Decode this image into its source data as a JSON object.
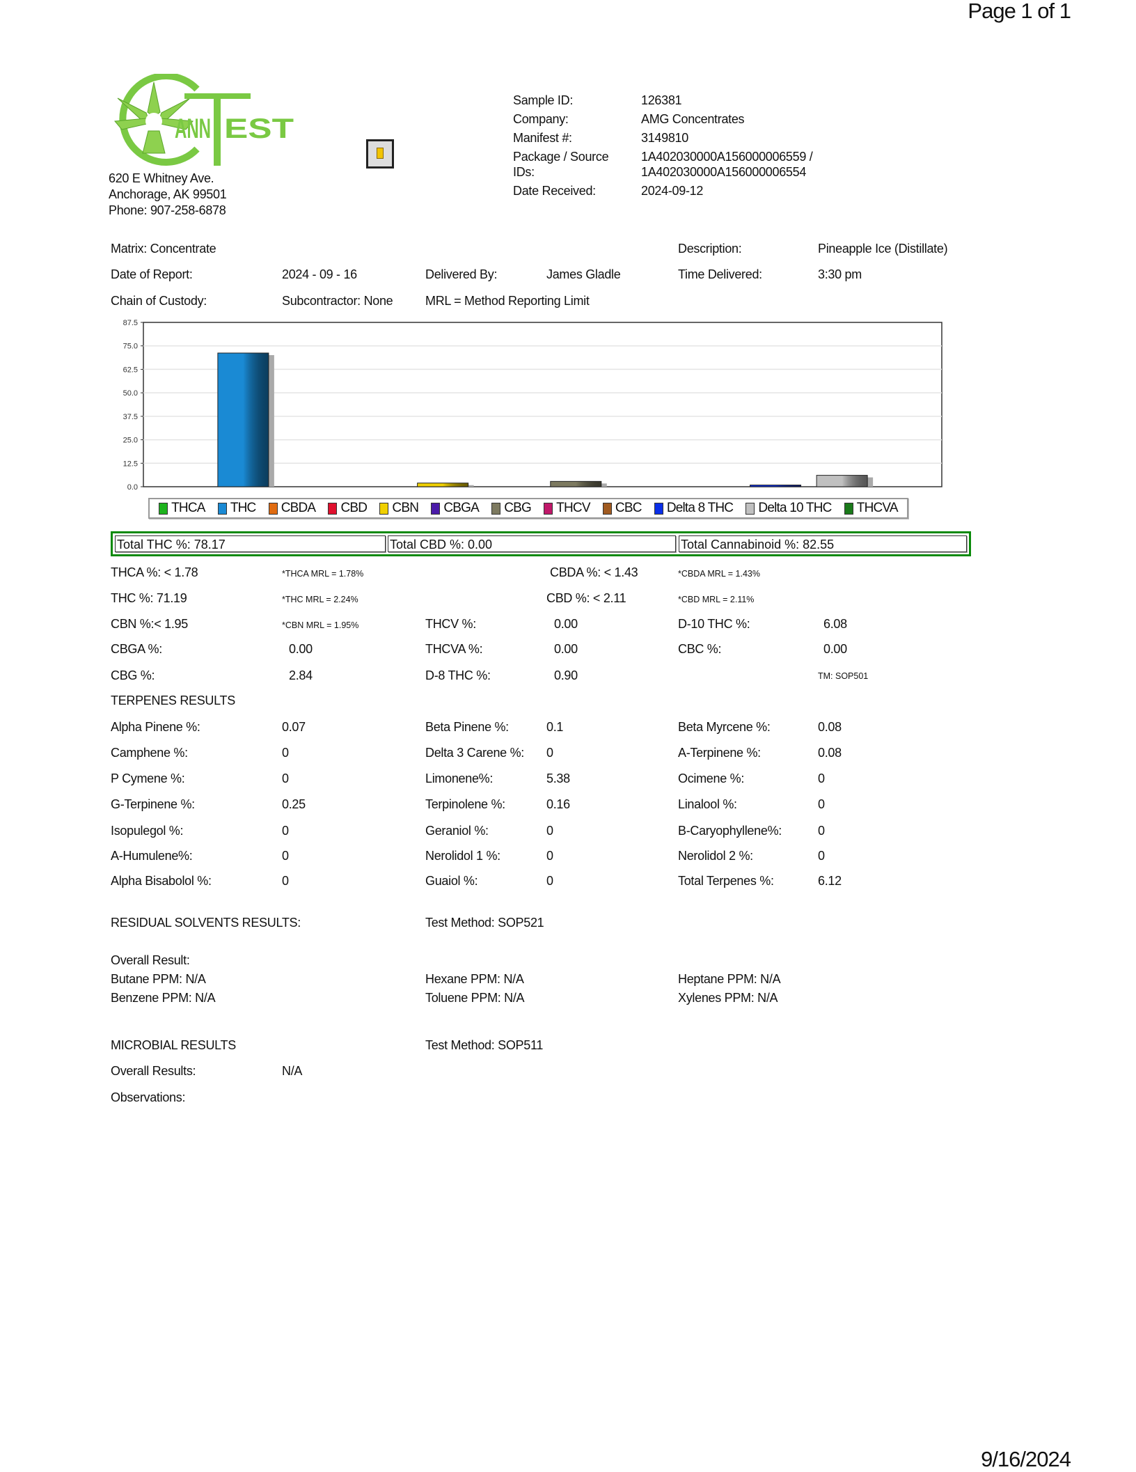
{
  "page_number": "Page 1 of 1",
  "footer_date": "9/16/2024",
  "lab": {
    "logo_text": "CANNTEST",
    "address1": "620 E Whitney  Ave.",
    "address2": "Anchorage, AK 99501",
    "phone": "Phone: 907-258-6878",
    "icon": "small-image-icon"
  },
  "sample": {
    "id_label": "Sample ID:",
    "id": "126381",
    "company_label": "Company:",
    "company": "AMG  Concentrates",
    "manifest_label": "Manifest #:",
    "manifest": "3149810",
    "package_label1": "Package / Source",
    "package_label2": "IDs:",
    "package1": "1A402030000A156000006559 /",
    "package2": "1A402030000A156000006554",
    "received_label": "Date Received:",
    "received": "2024-09-12"
  },
  "info": {
    "matrix": "Matrix:  Concentrate",
    "description_label": "Description:",
    "description": "Pineapple Ice (Distillate)",
    "report_date_label": "Date of Report:",
    "report_date": "2024 - 09 - 16",
    "delivered_by_label": "Delivered By:",
    "delivered_by": "James Gladle",
    "time_label": "Time Delivered:",
    "time": "3:30 pm",
    "custody_label": "Chain of Custody:",
    "custody": "Subcontractor: None",
    "mrl_note": "MRL = Method Reporting Limit"
  },
  "chart_data": {
    "type": "bar",
    "categories": [
      "THCA",
      "THC",
      "CBDA",
      "CBD",
      "CBN",
      "CBGA",
      "CBG",
      "THCV",
      "CBC",
      "Delta 8 THC",
      "Delta 10 THC",
      "THCVA"
    ],
    "values": [
      0,
      71.19,
      0,
      0,
      1.95,
      0,
      2.84,
      0,
      0,
      0.9,
      6.08,
      0
    ],
    "colors": [
      "#1db31d",
      "#1a8ad4",
      "#e06b10",
      "#e0102e",
      "#f0d000",
      "#4a1aa8",
      "#7d7a60",
      "#c0186a",
      "#a05a20",
      "#0a2ee8",
      "#c0c0c0",
      "#1a7a1a"
    ],
    "yticks": [
      "0.0",
      "12.5",
      "25.0",
      "37.5",
      "50.0",
      "62.5",
      "75.0",
      "87.5"
    ],
    "ylim": [
      0,
      87.5
    ],
    "grid": true,
    "legend": "bottom"
  },
  "totals": {
    "thc": "Total  THC %:  78.17",
    "cbd": "Total  CBD %:  0.00",
    "cannabinoid": "Total  Cannabinoid %:  82.55"
  },
  "cannabinoids": {
    "thca": "THCA %: <  1.78",
    "thca_mrl": "*THCA MRL = 1.78%",
    "cbda": "CBDA %: <  1.43",
    "cbda_mrl": "*CBDA MRL = 1.43%",
    "thc": "THC %:  71.19",
    "thc_mrl": "*THC MRL = 2.24%",
    "cbd": "CBD %: <  2.11",
    "cbd_mrl": "*CBD MRL = 2.11%",
    "cbn": "CBN %:<  1.95",
    "cbn_mrl": "*CBN MRL = 1.95%",
    "thcv_label": "THCV %:",
    "thcv": "0.00",
    "d10_label": "D-10 THC %:",
    "d10": "6.08",
    "cbga_label": "CBGA %:",
    "cbga": "0.00",
    "thcva_label": "THCVA %:",
    "thcva": "0.00",
    "cbc_label": "CBC %:",
    "cbc": "0.00",
    "cbg_label": "CBG %:",
    "cbg": "2.84",
    "d8_label": "D-8 THC  %:",
    "d8": "0.90",
    "method": "TM: SOP501"
  },
  "terpenes": {
    "heading": "TERPENES RESULTS",
    "rows": [
      [
        [
          "Alpha Pinene %:",
          "0.07"
        ],
        [
          "Beta Pinene %:",
          "0.1"
        ],
        [
          "Beta Myrcene %:",
          "0.08"
        ]
      ],
      [
        [
          "Camphene %:",
          "0"
        ],
        [
          "Delta 3 Carene %:",
          "0"
        ],
        [
          "A-Terpinene  %:",
          "0.08"
        ]
      ],
      [
        [
          "P Cymene %:",
          "0"
        ],
        [
          "Limonene%:",
          "5.38"
        ],
        [
          "Ocimene %:",
          "0"
        ]
      ],
      [
        [
          "G-Terpinene  %:",
          "0.25"
        ],
        [
          "Terpinolene  %:",
          "0.16"
        ],
        [
          "Linalool %:",
          "0"
        ]
      ],
      [
        [
          "Isopulegol %:",
          "0"
        ],
        [
          "Geraniol %:",
          "0"
        ],
        [
          "B-Caryophyllene%:",
          "0"
        ]
      ],
      [
        [
          "A-Humulene%:",
          "0"
        ],
        [
          "Nerolidol 1  %:",
          "0"
        ],
        [
          "Nerolidol 2  %:",
          "0"
        ]
      ],
      [
        [
          "Alpha Bisabolol %:",
          "0"
        ],
        [
          "Guaiol %:",
          "0"
        ],
        [
          "Total  Terpenes %:",
          "6.12"
        ]
      ]
    ]
  },
  "solvents": {
    "heading": "RESIDUAL  SOLVENTS RESULTS:",
    "method": "Test Method: SOP521",
    "overall": "Overall Result:",
    "butane": "Butane PPM:  N/A",
    "hexane": "Hexane PPM:  N/A",
    "heptane": "Heptane PPM: N/A",
    "benzene": "Benzene PPM:  N/A",
    "toluene": "Toluene PPM:  N/A",
    "xylenes": "Xylenes PPM:  N/A"
  },
  "microbial": {
    "heading": "MICROBIAL   RESULTS",
    "method": "Test Method: SOP511",
    "overall_label": "Overall Results:",
    "overall": "N/A",
    "observations": "Observations:"
  }
}
